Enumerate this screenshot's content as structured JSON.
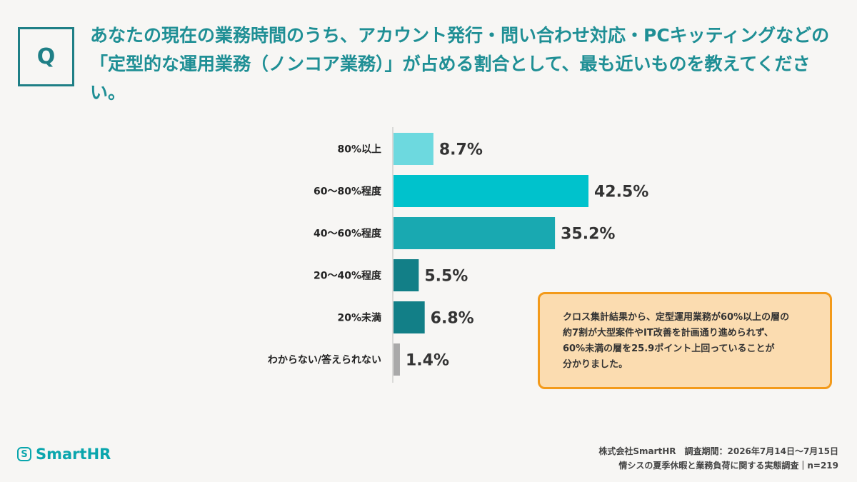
{
  "header": {
    "q_mark": "Q",
    "question": "あなたの現在の業務時間のうち、アカウント発行・問い合わせ対応・PCキッティングなどの「定型的な運用業務（ノンコア業務）」が占める割合として、最も近いものを教えてください。"
  },
  "chart_data": {
    "type": "bar",
    "orientation": "horizontal",
    "categories": [
      "80%以上",
      "60〜80%程度",
      "40〜60%程度",
      "20〜40%程度",
      "20%未満",
      "わからない/答えられない"
    ],
    "values": [
      8.7,
      42.5,
      35.2,
      5.5,
      6.8,
      1.4
    ],
    "value_labels": [
      "8.7%",
      "42.5%",
      "35.2%",
      "5.5%",
      "6.8%",
      "1.4%"
    ],
    "colors": [
      "#6dd9df",
      "#00c2cc",
      "#19a9b1",
      "#127f87",
      "#127f87",
      "#a9a9a9"
    ],
    "xlim": [
      0,
      42.5
    ],
    "grid": false,
    "legend": "none"
  },
  "callout": {
    "lines": [
      "クロス集計結果から、定型運用業務が60%以上の層の",
      "約7割が大型案件やIT改善を計画通り進められず、",
      "60%未満の層を25.9ポイント上回っていることが",
      "分かりました。"
    ]
  },
  "logo": {
    "mark": "S",
    "text": "SmartHR"
  },
  "footer": {
    "line1": "株式会社SmartHR　調査期間：2026年7月14日〜7月15日",
    "line2": "情シスの夏季休暇と業務負荷に関する実態調査｜n=219"
  }
}
